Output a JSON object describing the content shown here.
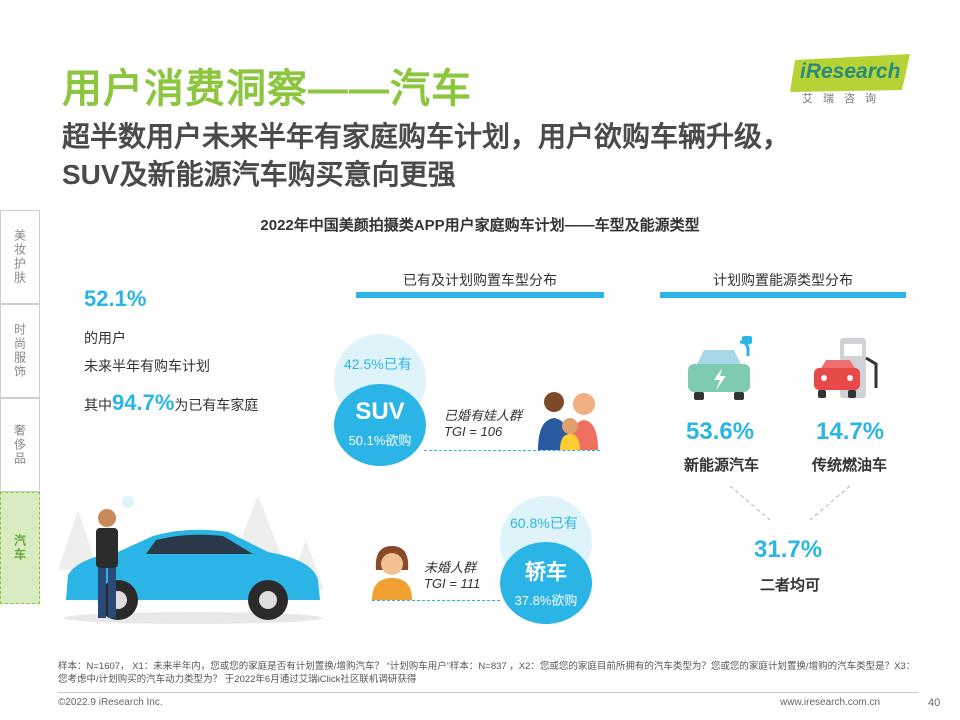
{
  "header": {
    "title": "用户消费洞察——汽车",
    "subtitle_line1": "超半数用户未来半年有家庭购车计划，用户欲购车辆升级，",
    "subtitle_line2": "SUV及新能源汽车购买意向更强"
  },
  "logo": {
    "brand": "iResearch",
    "brand_cn": "艾瑞咨询"
  },
  "side_tabs": [
    "美妆护肤",
    "时尚服饰",
    "奢侈品",
    "汽车"
  ],
  "chart_title": "2022年中国美颜拍摄类APP用户家庭购车计划——车型及能源类型",
  "left_panel": {
    "pct": "52.1%",
    "line1": "的用户",
    "line2": "未来半年有购车计划",
    "line3_prefix": "其中",
    "line3_pct": "94.7%",
    "line3_suffix": "为已有车家庭"
  },
  "vehicle_section": {
    "title": "已有及计划购置车型分布",
    "suv": {
      "name": "SUV",
      "own": "42.5%已有",
      "want": "50.1%欲购",
      "group": "已婚有娃人群",
      "tgi": "TGI = 106"
    },
    "sedan": {
      "name": "轿车",
      "own": "60.8%已有",
      "want": "37.8%欲购",
      "group": "未婚人群",
      "tgi": "TGI = 111"
    }
  },
  "energy_section": {
    "title": "计划购置能源类型分布",
    "ev": {
      "pct": "53.6%",
      "label": "新能源汽车"
    },
    "fuel": {
      "pct": "14.7%",
      "label": "传统燃油车"
    },
    "both": {
      "pct": "31.7%",
      "label": "二者均可"
    }
  },
  "footer": {
    "note": "样本：N=1607， X1：未来半年内，您或您的家庭是否有计划置换/增购汽车？ “计划购车用户”样本：N=837 ，X2：您或您的家庭目前所拥有的汽车类型为？您或您的家庭计划置换/增购的汽车类型是？X3：您考虑中/计划购买的汽车动力类型为？ 于2022年6月通过艾瑞iClick社区联机调研获得",
    "copyright": "©2022.9 iResearch Inc.",
    "website": "www.iresearch.com.cn",
    "page": "40"
  },
  "colors": {
    "accent_green": "#8cc63f",
    "accent_blue": "#2bb5e6"
  }
}
